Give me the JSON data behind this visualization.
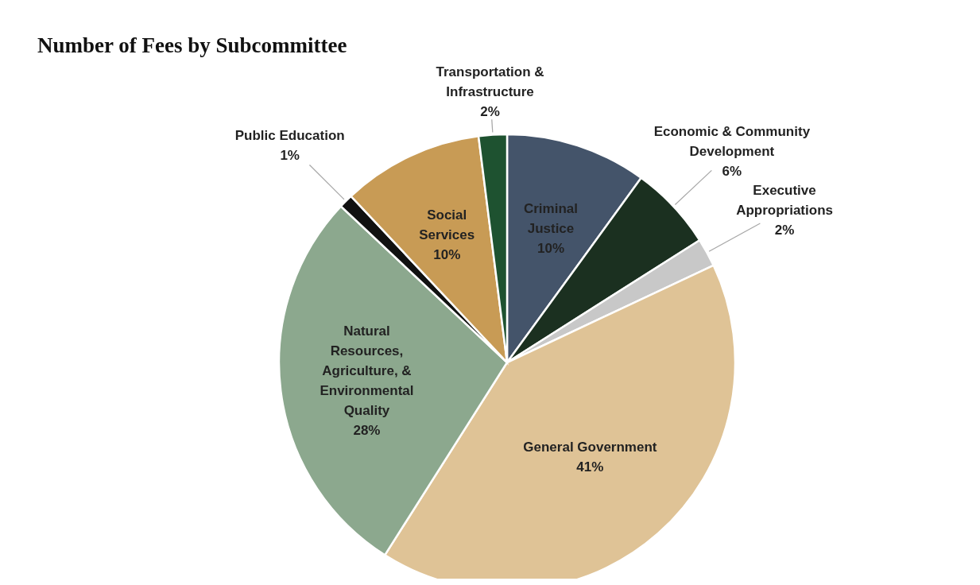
{
  "chart_data": {
    "type": "pie",
    "title": "Number of Fees by Subcommittee",
    "categories": [
      "Criminal Justice",
      "Economic & Community Development",
      "Executive Appropriations",
      "General Government",
      "Natural Resources, Agriculture, & Environmental Quality",
      "Public Education",
      "Social Services",
      "Transportation & Infrastructure"
    ],
    "values": [
      10,
      6,
      2,
      41,
      28,
      1,
      10,
      2
    ],
    "colors": [
      "#44546a",
      "#1b3020",
      "#c8c8c8",
      "#dfc396",
      "#8ca88e",
      "#111111",
      "#c89b55",
      "#1e5230"
    ],
    "value_labels": [
      "10%",
      "6%",
      "2%",
      "41%",
      "28%",
      "1%",
      "10%",
      "2%"
    ]
  }
}
